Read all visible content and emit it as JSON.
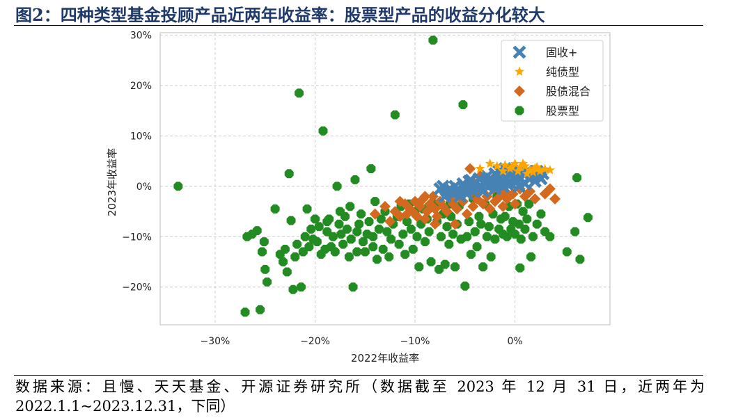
{
  "figure": {
    "title": "图2：四种类型基金投顾产品近两年收益率：股票型产品的收益分化较大",
    "source_line1": "数据来源：且慢、天天基金、开源证券研究所（数据截至 2023 年 12 月 31 日，近两年为",
    "source_line2": "2022.1.1~2023.12.31，下同）"
  },
  "chart_data": {
    "type": "scatter",
    "title": "",
    "xlabel": "2022年收益率",
    "ylabel": "2023年收益率",
    "xlim": [
      -0.355,
      0.095
    ],
    "ylim": [
      -0.275,
      0.305
    ],
    "xticks": [
      -0.3,
      -0.2,
      -0.1,
      0.0
    ],
    "xtick_labels": [
      "−30%",
      "−20%",
      "−10%",
      "0%"
    ],
    "yticks": [
      -0.2,
      -0.1,
      0.0,
      0.1,
      0.2,
      0.3
    ],
    "ytick_labels": [
      "−20%",
      "−10%",
      "0%",
      "10%",
      "20%",
      "30%"
    ],
    "grid": true,
    "legend_position": "top-right",
    "series": [
      {
        "name": "固收+",
        "color": "#4682b4",
        "marker": "x",
        "points": [
          [
            -0.075,
            -0.005
          ],
          [
            -0.072,
            0.0
          ],
          [
            -0.07,
            -0.02
          ],
          [
            -0.068,
            -0.01
          ],
          [
            -0.065,
            -0.005
          ],
          [
            -0.062,
            -0.015
          ],
          [
            -0.06,
            0.0
          ],
          [
            -0.058,
            -0.01
          ],
          [
            -0.055,
            -0.02
          ],
          [
            -0.052,
            0.005
          ],
          [
            -0.05,
            -0.005
          ],
          [
            -0.048,
            -0.015
          ],
          [
            -0.046,
            0.01
          ],
          [
            -0.044,
            0.0
          ],
          [
            -0.042,
            -0.01
          ],
          [
            -0.04,
            0.005
          ],
          [
            -0.038,
            -0.005
          ],
          [
            -0.036,
            0.015
          ],
          [
            -0.034,
            0.0
          ],
          [
            -0.032,
            -0.01
          ],
          [
            -0.03,
            0.01
          ],
          [
            -0.028,
            0.02
          ],
          [
            -0.026,
            0.0
          ],
          [
            -0.024,
            0.015
          ],
          [
            -0.022,
            0.005
          ],
          [
            -0.02,
            0.025
          ],
          [
            -0.018,
            0.01
          ],
          [
            -0.016,
            0.03
          ],
          [
            -0.014,
            0.02
          ],
          [
            -0.012,
            0.0
          ],
          [
            -0.01,
            0.035
          ],
          [
            -0.008,
            0.015
          ],
          [
            -0.006,
            0.025
          ],
          [
            -0.004,
            0.005
          ],
          [
            -0.002,
            0.03
          ],
          [
            0.0,
            0.02
          ],
          [
            0.002,
            0.01
          ],
          [
            0.004,
            0.035
          ],
          [
            0.006,
            0.015
          ],
          [
            0.008,
            0.025
          ],
          [
            0.01,
            0.005
          ],
          [
            0.012,
            0.03
          ],
          [
            0.014,
            0.015
          ],
          [
            0.016,
            0.02
          ],
          [
            0.018,
            0.025
          ],
          [
            0.02,
            0.01
          ],
          [
            0.022,
            0.03
          ],
          [
            0.024,
            0.02
          ],
          [
            0.026,
            0.015
          ],
          [
            0.028,
            0.025
          ],
          [
            -0.02,
            -0.005
          ],
          [
            -0.016,
            0.008
          ],
          [
            -0.008,
            0.005
          ],
          [
            0.004,
            0.0
          ],
          [
            -0.028,
            0.008
          ],
          [
            -0.044,
            0.012
          ]
        ]
      },
      {
        "name": "纯债型",
        "color": "#ffa500",
        "marker": "star",
        "points": [
          [
            -0.035,
            0.035
          ],
          [
            -0.025,
            0.045
          ],
          [
            -0.018,
            0.04
          ],
          [
            -0.01,
            0.042
          ],
          [
            -0.005,
            0.035
          ],
          [
            0.0,
            0.045
          ],
          [
            0.005,
            0.038
          ],
          [
            0.01,
            0.04
          ],
          [
            0.015,
            0.032
          ],
          [
            0.02,
            0.036
          ],
          [
            0.025,
            0.03
          ],
          [
            0.03,
            0.034
          ],
          [
            0.035,
            0.032
          ],
          [
            0.008,
            0.045
          ],
          [
            0.018,
            0.028
          ],
          [
            0.003,
            0.03
          ],
          [
            -0.003,
            0.038
          ],
          [
            0.012,
            0.025
          ],
          [
            0.022,
            0.038
          ],
          [
            -0.012,
            0.03
          ]
        ]
      },
      {
        "name": "股债混合",
        "color": "#d2691e",
        "marker": "diamond",
        "points": [
          [
            -0.13,
            -0.04
          ],
          [
            -0.125,
            -0.07
          ],
          [
            -0.12,
            -0.05
          ],
          [
            -0.115,
            -0.06
          ],
          [
            -0.11,
            -0.035
          ],
          [
            -0.108,
            -0.055
          ],
          [
            -0.105,
            -0.045
          ],
          [
            -0.1,
            -0.03
          ],
          [
            -0.098,
            -0.06
          ],
          [
            -0.095,
            -0.04
          ],
          [
            -0.092,
            -0.025
          ],
          [
            -0.09,
            -0.065
          ],
          [
            -0.088,
            -0.05
          ],
          [
            -0.085,
            -0.035
          ],
          [
            -0.082,
            -0.02
          ],
          [
            -0.08,
            -0.045
          ],
          [
            -0.078,
            -0.06
          ],
          [
            -0.075,
            -0.03
          ],
          [
            -0.072,
            -0.04
          ],
          [
            -0.07,
            -0.015
          ],
          [
            -0.068,
            -0.05
          ],
          [
            -0.065,
            -0.025
          ],
          [
            -0.062,
            -0.035
          ],
          [
            -0.06,
            -0.01
          ],
          [
            -0.058,
            -0.045
          ],
          [
            -0.055,
            -0.02
          ],
          [
            -0.052,
            -0.03
          ],
          [
            -0.05,
            0.0
          ],
          [
            -0.048,
            -0.055
          ],
          [
            -0.045,
            -0.015
          ],
          [
            -0.042,
            -0.04
          ],
          [
            -0.04,
            0.005
          ],
          [
            -0.038,
            -0.025
          ],
          [
            -0.035,
            -0.01
          ],
          [
            -0.032,
            -0.035
          ],
          [
            -0.03,
            0.01
          ],
          [
            -0.028,
            -0.02
          ],
          [
            -0.025,
            -0.045
          ],
          [
            -0.022,
            -0.005
          ],
          [
            -0.02,
            -0.03
          ],
          [
            -0.018,
            0.0
          ],
          [
            -0.015,
            -0.02
          ],
          [
            -0.012,
            -0.04
          ],
          [
            -0.01,
            -0.01
          ],
          [
            -0.008,
            -0.025
          ],
          [
            -0.005,
            0.005
          ],
          [
            -0.002,
            -0.015
          ],
          [
            0.0,
            -0.035
          ],
          [
            0.005,
            -0.005
          ],
          [
            0.01,
            -0.02
          ],
          [
            0.015,
            -0.01
          ],
          [
            0.02,
            -0.025
          ],
          [
            0.03,
            -0.015
          ],
          [
            0.035,
            -0.005
          ],
          [
            0.04,
            -0.025
          ],
          [
            -0.045,
            0.035
          ],
          [
            -0.035,
            0.02
          ],
          [
            -0.06,
            -0.075
          ],
          [
            -0.09,
            -0.02
          ],
          [
            -0.1,
            -0.055
          ],
          [
            -0.14,
            -0.055
          ],
          [
            -0.115,
            -0.03
          ],
          [
            -0.08,
            -0.075
          ]
        ]
      },
      {
        "name": "股票型",
        "color": "#228b22",
        "marker": "octagon",
        "points": [
          [
            -0.337,
            0.0
          ],
          [
            -0.27,
            -0.25
          ],
          [
            -0.255,
            -0.245
          ],
          [
            -0.268,
            -0.1
          ],
          [
            -0.263,
            -0.095
          ],
          [
            -0.258,
            -0.088
          ],
          [
            -0.253,
            -0.13
          ],
          [
            -0.251,
            -0.11
          ],
          [
            -0.25,
            -0.165
          ],
          [
            -0.248,
            -0.19
          ],
          [
            -0.24,
            -0.045
          ],
          [
            -0.235,
            -0.135
          ],
          [
            -0.232,
            -0.15
          ],
          [
            -0.23,
            -0.125
          ],
          [
            -0.228,
            -0.17
          ],
          [
            -0.226,
            0.025
          ],
          [
            -0.224,
            -0.068
          ],
          [
            -0.222,
            -0.205
          ],
          [
            -0.22,
            -0.14
          ],
          [
            -0.218,
            -0.115
          ],
          [
            -0.216,
            0.185
          ],
          [
            -0.214,
            -0.2
          ],
          [
            -0.212,
            -0.13
          ],
          [
            -0.21,
            -0.1
          ],
          [
            -0.208,
            -0.045
          ],
          [
            -0.206,
            -0.12
          ],
          [
            -0.204,
            -0.085
          ],
          [
            -0.202,
            -0.105
          ],
          [
            -0.2,
            -0.065
          ],
          [
            -0.198,
            -0.11
          ],
          [
            -0.196,
            -0.08
          ],
          [
            -0.194,
            -0.135
          ],
          [
            -0.192,
            0.11
          ],
          [
            -0.19,
            -0.125
          ],
          [
            -0.188,
            -0.09
          ],
          [
            -0.186,
            -0.065
          ],
          [
            -0.184,
            -0.12
          ],
          [
            -0.182,
            -0.1
          ],
          [
            -0.18,
            -0.13
          ],
          [
            -0.178,
            0.0
          ],
          [
            -0.176,
            -0.075
          ],
          [
            -0.174,
            -0.095
          ],
          [
            -0.172,
            -0.115
          ],
          [
            -0.17,
            -0.06
          ],
          [
            -0.168,
            -0.085
          ],
          [
            -0.166,
            -0.14
          ],
          [
            -0.164,
            -0.105
          ],
          [
            -0.162,
            -0.2
          ],
          [
            -0.16,
            0.013
          ],
          [
            -0.158,
            -0.09
          ],
          [
            -0.156,
            -0.075
          ],
          [
            -0.154,
            -0.055
          ],
          [
            -0.152,
            -0.11
          ],
          [
            -0.15,
            -0.13
          ],
          [
            -0.148,
            -0.095
          ],
          [
            -0.146,
            -0.07
          ],
          [
            -0.144,
            0.035
          ],
          [
            -0.142,
            -0.1
          ],
          [
            -0.14,
            -0.03
          ],
          [
            -0.138,
            -0.145
          ],
          [
            -0.136,
            -0.085
          ],
          [
            -0.134,
            -0.065
          ],
          [
            -0.132,
            -0.125
          ],
          [
            -0.13,
            -0.05
          ],
          [
            -0.128,
            -0.09
          ],
          [
            -0.126,
            -0.14
          ],
          [
            -0.124,
            -0.105
          ],
          [
            -0.122,
            -0.075
          ],
          [
            -0.12,
            0.142
          ],
          [
            -0.118,
            -0.06
          ],
          [
            -0.116,
            -0.115
          ],
          [
            -0.114,
            -0.04
          ],
          [
            -0.112,
            -0.095
          ],
          [
            -0.11,
            -0.135
          ],
          [
            -0.108,
            -0.07
          ],
          [
            -0.106,
            -0.035
          ],
          [
            -0.104,
            -0.085
          ],
          [
            -0.102,
            -0.125
          ],
          [
            -0.1,
            -0.05
          ],
          [
            -0.098,
            -0.1
          ],
          [
            -0.096,
            -0.16
          ],
          [
            -0.094,
            -0.075
          ],
          [
            -0.092,
            -0.045
          ],
          [
            -0.09,
            -0.11
          ],
          [
            -0.088,
            -0.065
          ],
          [
            -0.086,
            -0.09
          ],
          [
            -0.084,
            -0.15
          ],
          [
            -0.082,
            0.29
          ],
          [
            -0.08,
            -0.035
          ],
          [
            -0.078,
            -0.07
          ],
          [
            -0.076,
            -0.165
          ],
          [
            -0.074,
            -0.1
          ],
          [
            -0.072,
            -0.055
          ],
          [
            -0.07,
            -0.155
          ],
          [
            -0.068,
            -0.08
          ],
          [
            -0.066,
            -0.115
          ],
          [
            -0.064,
            -0.06
          ],
          [
            -0.062,
            -0.095
          ],
          [
            -0.06,
            -0.16
          ],
          [
            -0.058,
            -0.075
          ],
          [
            -0.056,
            -0.04
          ],
          [
            -0.054,
            -0.105
          ],
          [
            -0.052,
            0.162
          ],
          [
            -0.05,
            -0.198
          ],
          [
            -0.048,
            -0.1
          ],
          [
            -0.046,
            -0.07
          ],
          [
            -0.044,
            -0.135
          ],
          [
            -0.042,
            -0.025
          ],
          [
            -0.04,
            -0.09
          ],
          [
            -0.038,
            -0.12
          ],
          [
            -0.036,
            -0.06
          ],
          [
            -0.034,
            -0.075
          ],
          [
            -0.032,
            -0.16
          ],
          [
            -0.03,
            -0.035
          ],
          [
            -0.028,
            -0.1
          ],
          [
            -0.026,
            -0.08
          ],
          [
            -0.024,
            -0.14
          ],
          [
            -0.022,
            -0.055
          ],
          [
            -0.02,
            -0.105
          ],
          [
            -0.018,
            -0.02
          ],
          [
            -0.016,
            -0.085
          ],
          [
            -0.014,
            -0.065
          ],
          [
            -0.012,
            -0.095
          ],
          [
            -0.01,
            -0.06
          ],
          [
            -0.008,
            -0.1
          ],
          [
            -0.006,
            -0.04
          ],
          [
            -0.004,
            -0.085
          ],
          [
            -0.002,
            -0.07
          ],
          [
            0.0,
            -0.095
          ],
          [
            0.002,
            -0.035
          ],
          [
            0.004,
            -0.075
          ],
          [
            0.006,
            -0.105
          ],
          [
            0.008,
            -0.05
          ],
          [
            0.01,
            -0.085
          ],
          [
            0.012,
            -0.065
          ],
          [
            0.014,
            -0.035
          ],
          [
            0.016,
            -0.14
          ],
          [
            0.018,
            -0.1
          ],
          [
            0.022,
            -0.075
          ],
          [
            0.026,
            -0.055
          ],
          [
            0.03,
            -0.09
          ],
          [
            0.035,
            -0.1
          ],
          [
            0.052,
            -0.13
          ],
          [
            0.062,
            0.017
          ],
          [
            0.06,
            -0.09
          ],
          [
            0.065,
            -0.145
          ],
          [
            0.073,
            -0.062
          ],
          [
            0.005,
            -0.162
          ],
          [
            -0.065,
            -0.035
          ],
          [
            -0.005,
            0.005
          ],
          [
            -0.175,
            -0.05
          ],
          [
            -0.165,
            -0.04
          ],
          [
            -0.188,
            -0.07
          ],
          [
            -0.142,
            -0.12
          ],
          [
            -0.158,
            -0.13
          ]
        ]
      }
    ]
  }
}
